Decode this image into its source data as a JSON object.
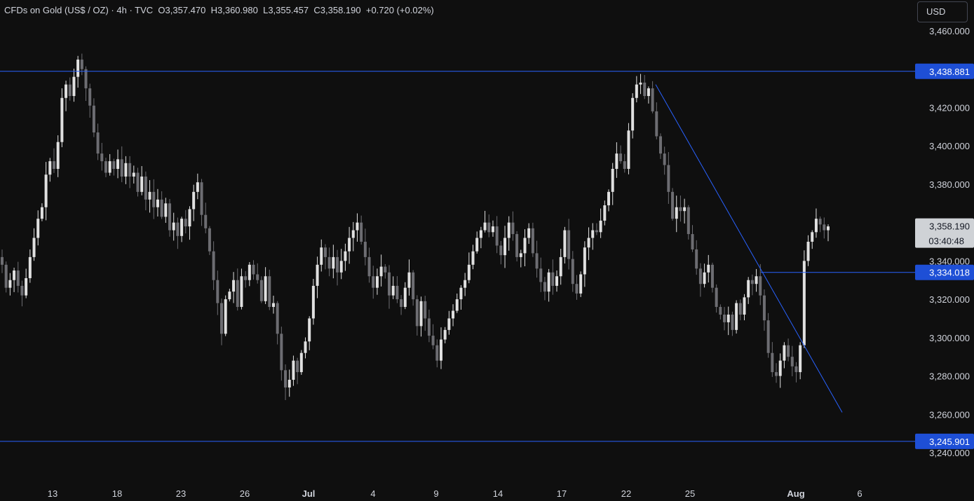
{
  "header": {
    "symbol": "CFDs on Gold (US$ / OZ)",
    "interval": "4h",
    "source": "TVC",
    "open_label": "O",
    "open": "3,357.470",
    "high_label": "H",
    "high": "3,360.980",
    "low_label": "L",
    "low": "3,355.457",
    "close_label": "C",
    "close": "3,358.190",
    "change": "+0.720 (+0.02%)"
  },
  "currency_button": "USD",
  "colors": {
    "background": "#0f0f0f",
    "candle_up": "#e0e0e0",
    "candle_down": "#6d6d72",
    "level_line": "#2962ff",
    "level_label_bg": "#1e4fd6",
    "price_label_bg": "#cfd2d6"
  },
  "chart_data": {
    "type": "candlestick",
    "y_ticks": [
      "3,460.000",
      "3,440.000",
      "3,420.000",
      "3,400.000",
      "3,380.000",
      "3,360.000",
      "3,340.000",
      "3,320.000",
      "3,300.000",
      "3,280.000",
      "3,260.000",
      "3,240.000"
    ],
    "ylim": [
      3230,
      3470
    ],
    "x_ticks": [
      "13",
      "18",
      "23",
      "26",
      "Jul",
      "4",
      "9",
      "14",
      "17",
      "22",
      "25",
      "Aug",
      "6"
    ],
    "horizontal_levels": [
      {
        "value": 3438.881,
        "label": "3,438.881"
      },
      {
        "value": 3334.018,
        "label": "3,334.018"
      },
      {
        "value": 3245.901,
        "label": "3,245.901"
      }
    ],
    "trendline": {
      "from": {
        "date": "Jul 23",
        "price": 3432
      },
      "to": {
        "date": "Aug 5",
        "price": 3261
      }
    },
    "current_price": {
      "value": 3358.19,
      "label": "3,358.190",
      "countdown": "03:40:48"
    },
    "candles_close": [
      3338,
      3326,
      3330,
      3335,
      3327,
      3322,
      3331,
      3342,
      3352,
      3362,
      3368,
      3385,
      3392,
      3388,
      3402,
      3425,
      3432,
      3426,
      3436,
      3445,
      3440,
      3430,
      3421,
      3407,
      3396,
      3392,
      3386,
      3392,
      3388,
      3393,
      3384,
      3391,
      3384,
      3386,
      3376,
      3384,
      3372,
      3376,
      3368,
      3372,
      3363,
      3370,
      3356,
      3360,
      3353,
      3362,
      3358,
      3367,
      3376,
      3381,
      3364,
      3357,
      3345,
      3330,
      3318,
      3302,
      3320,
      3324,
      3330,
      3316,
      3332,
      3330,
      3338,
      3333,
      3330,
      3319,
      3332,
      3316,
      3318,
      3302,
      3283,
      3274,
      3278,
      3288,
      3282,
      3292,
      3298,
      3310,
      3327,
      3338,
      3347,
      3342,
      3336,
      3342,
      3334,
      3340,
      3345,
      3352,
      3356,
      3360,
      3350,
      3342,
      3332,
      3326,
      3332,
      3337,
      3334,
      3322,
      3327,
      3320,
      3316,
      3326,
      3334,
      3320,
      3306,
      3319,
      3310,
      3301,
      3296,
      3288,
      3299,
      3304,
      3310,
      3314,
      3320,
      3326,
      3330,
      3338,
      3345,
      3352,
      3356,
      3360,
      3355,
      3358,
      3348,
      3343,
      3352,
      3360,
      3354,
      3342,
      3344,
      3352,
      3357,
      3344,
      3336,
      3329,
      3324,
      3334,
      3327,
      3332,
      3342,
      3356,
      3341,
      3328,
      3323,
      3333,
      3347,
      3352,
      3356,
      3355,
      3361,
      3369,
      3376,
      3388,
      3396,
      3392,
      3388,
      3408,
      3425,
      3432,
      3433,
      3426,
      3430,
      3418,
      3405,
      3396,
      3390,
      3376,
      3362,
      3368,
      3366,
      3368,
      3354,
      3346,
      3336,
      3328,
      3334,
      3338,
      3326,
      3316,
      3312,
      3308,
      3312,
      3304,
      3318,
      3312,
      3321,
      3330,
      3328,
      3332,
      3322,
      3309,
      3292,
      3282,
      3280,
      3288,
      3296,
      3290,
      3285,
      3282,
      3296,
      3340,
      3350,
      3355,
      3362,
      3359,
      3356,
      3358
    ]
  }
}
